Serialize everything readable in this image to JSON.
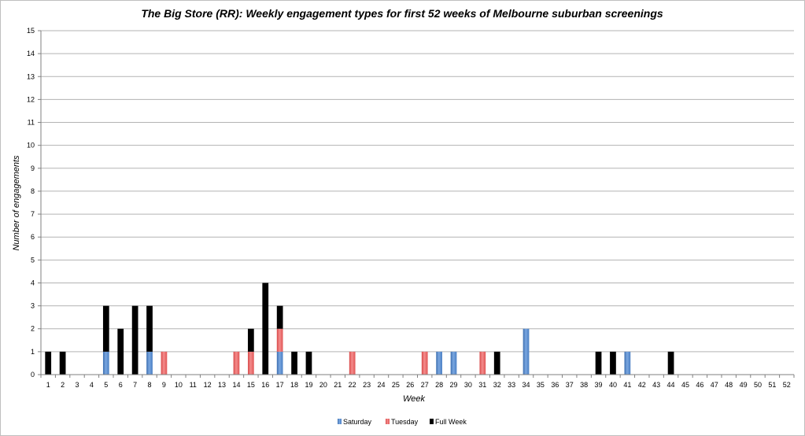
{
  "chart_data": {
    "type": "bar",
    "stacked": true,
    "title": "The Big Store (RR): Weekly engagement types for first 52 weeks of Melbourne suburban screenings",
    "xlabel": "Week",
    "ylabel": "Number of engagements",
    "ylim": [
      0,
      15
    ],
    "grid": true,
    "legend_position": "bottom",
    "categories": [
      "1",
      "2",
      "3",
      "4",
      "5",
      "6",
      "7",
      "8",
      "9",
      "10",
      "11",
      "12",
      "13",
      "14",
      "15",
      "16",
      "17",
      "18",
      "19",
      "20",
      "21",
      "22",
      "23",
      "24",
      "25",
      "26",
      "27",
      "28",
      "29",
      "30",
      "31",
      "32",
      "33",
      "34",
      "35",
      "36",
      "37",
      "38",
      "39",
      "40",
      "41",
      "42",
      "43",
      "44",
      "45",
      "46",
      "47",
      "48",
      "49",
      "50",
      "51",
      "52"
    ],
    "y_ticks": [
      "0",
      "1",
      "2",
      "3",
      "4",
      "5",
      "6",
      "7",
      "8",
      "9",
      "10",
      "11",
      "12",
      "13",
      "14",
      "15"
    ],
    "series": [
      {
        "name": "Saturday",
        "color": "#4f81bd",
        "values": [
          0,
          0,
          0,
          0,
          1,
          0,
          0,
          1,
          0,
          0,
          0,
          0,
          0,
          0,
          0,
          0,
          1,
          0,
          0,
          0,
          0,
          0,
          0,
          0,
          0,
          0,
          0,
          1,
          1,
          0,
          0,
          0,
          0,
          2,
          0,
          0,
          0,
          0,
          0,
          0,
          1,
          0,
          0,
          0,
          0,
          0,
          0,
          0,
          0,
          0,
          0,
          0
        ]
      },
      {
        "name": "Tuesday",
        "color": "#c0504d",
        "values": [
          0,
          0,
          0,
          0,
          0,
          0,
          0,
          0,
          1,
          0,
          0,
          0,
          0,
          1,
          1,
          0,
          1,
          0,
          0,
          0,
          0,
          1,
          0,
          0,
          0,
          0,
          1,
          0,
          0,
          0,
          1,
          0,
          0,
          0,
          0,
          0,
          0,
          0,
          0,
          0,
          0,
          0,
          0,
          0,
          0,
          0,
          0,
          0,
          0,
          0,
          0,
          0
        ]
      },
      {
        "name": "Full Week",
        "color": "#9bbb59",
        "values": [
          1,
          1,
          0,
          0,
          2,
          2,
          3,
          2,
          0,
          0,
          0,
          0,
          0,
          0,
          1,
          4,
          1,
          1,
          1,
          0,
          0,
          0,
          0,
          0,
          0,
          0,
          0,
          0,
          0,
          0,
          0,
          1,
          0,
          0,
          0,
          0,
          0,
          0,
          1,
          1,
          0,
          0,
          0,
          1,
          0,
          0,
          0,
          0,
          0,
          0,
          0,
          0
        ]
      }
    ]
  }
}
